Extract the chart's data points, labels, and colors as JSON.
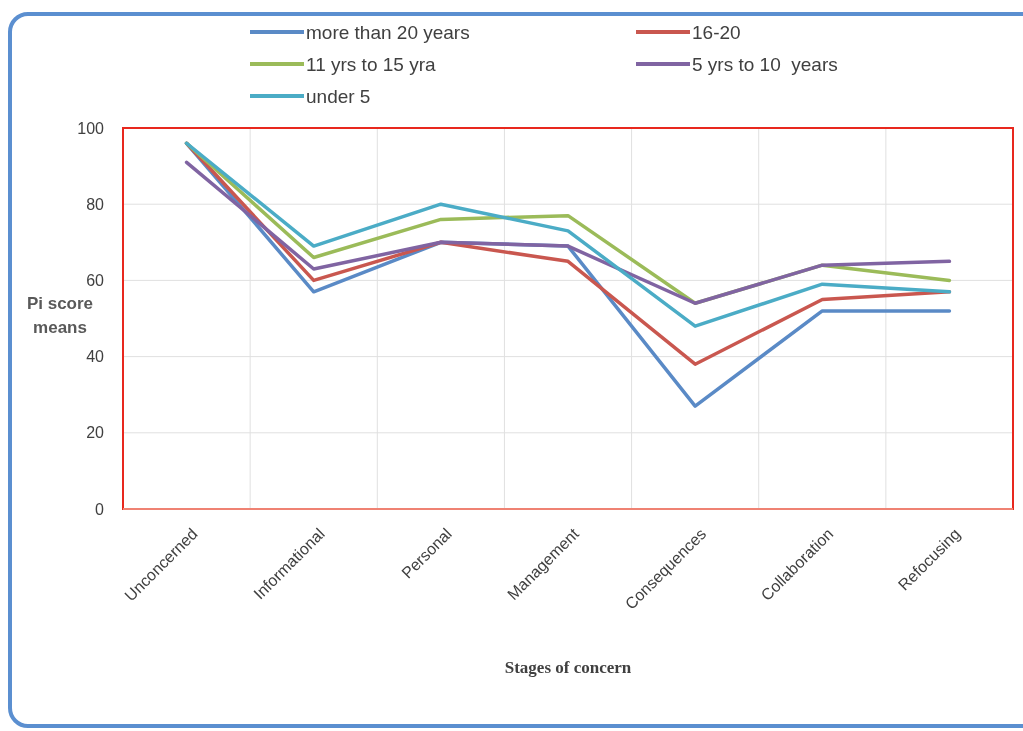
{
  "chart_data": {
    "type": "line",
    "xlabel": "Stages of concern",
    "ylabel": "Pi score means",
    "categories": [
      "Unconcerned",
      "Informational",
      "Personal",
      "Management",
      "Consequences",
      "Collaboration",
      "Refocusing"
    ],
    "series": [
      {
        "name": "more than 20 years",
        "color": "#5a8ac6",
        "values": [
          96,
          57,
          70,
          69,
          27,
          52,
          52
        ]
      },
      {
        "name": "16-20",
        "color": "#c9574f",
        "values": [
          96,
          60,
          70,
          65,
          38,
          55,
          57
        ]
      },
      {
        "name": "11 yrs to 15 yra",
        "color": "#9bbb59",
        "values": [
          96,
          66,
          76,
          77,
          54,
          64,
          60
        ]
      },
      {
        "name": "5 yrs to 10  years",
        "color": "#8064a2",
        "values": [
          91,
          63,
          70,
          69,
          54,
          64,
          65
        ]
      },
      {
        "name": "under 5",
        "color": "#4bacc6",
        "values": [
          96,
          69,
          80,
          73,
          48,
          59,
          57
        ]
      }
    ],
    "ylim": [
      0,
      100
    ],
    "yticks": [
      0,
      20,
      40,
      60,
      80,
      100
    ],
    "grid": true,
    "legend": "top",
    "marker": "none",
    "line_style": "solid"
  }
}
